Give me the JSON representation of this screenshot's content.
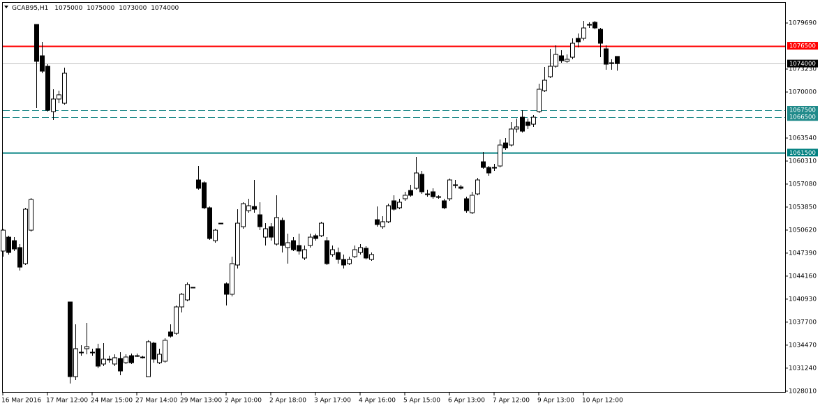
{
  "chart_data": {
    "type": "candlestick",
    "symbol": "GCAB95,H1",
    "header_values": [
      1075000,
      1075000,
      1073000,
      1074000
    ],
    "categories": [
      "16 Mar 2016",
      null,
      null,
      null,
      null,
      null,
      null,
      null,
      "17 Mar 12:00",
      null,
      null,
      null,
      null,
      null,
      null,
      null,
      "24 Mar 15:00",
      null,
      null,
      null,
      null,
      null,
      null,
      null,
      "27 Mar 14:00",
      null,
      null,
      null,
      null,
      null,
      null,
      null,
      "29 Mar 13:00",
      null,
      null,
      null,
      null,
      null,
      null,
      null,
      "2 Apr 10:00",
      null,
      null,
      null,
      null,
      null,
      null,
      null,
      "2 Apr 18:00",
      null,
      null,
      null,
      null,
      null,
      null,
      null,
      "3 Apr 17:00",
      null,
      null,
      null,
      null,
      null,
      null,
      null,
      "4 Apr 16:00",
      null,
      null,
      null,
      null,
      null,
      null,
      null,
      "5 Apr 15:00",
      null,
      null,
      null,
      null,
      null,
      null,
      null,
      "6 Apr 13:00",
      null,
      null,
      null,
      null,
      null,
      null,
      null,
      "7 Apr 12:00",
      null,
      null,
      null,
      null,
      null,
      null,
      null,
      "9 Apr 13:00",
      null,
      null,
      null,
      null,
      null,
      null,
      null,
      "10 Apr 12:00",
      null,
      null,
      null,
      null,
      null,
      null
    ],
    "open": [
      1047680,
      1049630,
      1049140,
      1048170,
      1045910,
      1050610,
      1079490,
      1075090,
      1073620,
      1067260,
      1069020,
      1068430,
      1040530,
      1030050,
      1033480,
      1033970,
      1033480,
      1033970,
      1031820,
      1032500,
      1031820,
      1032600,
      1032010,
      1032990,
      1032990,
      1032800,
      1030050,
      1034750,
      1032010,
      1032210,
      1036320,
      1036120,
      1039840,
      1040820,
      1042590,
      1057660,
      1057270,
      1053750,
      1049140,
      1051590,
      1043080,
      1041610,
      1045720,
      1051100,
      1053350,
      1053940,
      1052770,
      1049630,
      1051100,
      1048660,
      1051980,
      1048170,
      1049140,
      1048460,
      1046700,
      1048460,
      1049830,
      1049830,
      1049140,
      1047190,
      1047480,
      1046500,
      1045910,
      1046890,
      1047480,
      1048070,
      1046500,
      1052080,
      1051100,
      1051790,
      1054730,
      1053750,
      1055020,
      1056190,
      1056490,
      1058450,
      1055700,
      1056000,
      1055310,
      1054730,
      1055020,
      1056980,
      1056680,
      1055020,
      1053060,
      1055700,
      1060210,
      1059420,
      1059420,
      1059620,
      1062850,
      1062560,
      1064810,
      1066470,
      1065790,
      1065490,
      1067260,
      1070190,
      1072150,
      1073620,
      1075090,
      1074310,
      1074890,
      1077540,
      1077540,
      1079490,
      1079790,
      1078810,
      1076070,
      1074110,
      1075000
    ],
    "high": [
      1050810,
      1049830,
      1049630,
      1048660,
      1053750,
      1055120,
      1079490,
      1077050,
      1073910,
      1070390,
      1070190,
      1073420,
      1040530,
      1037400,
      1034460,
      1037590,
      1033970,
      1034660,
      1034750,
      1032990,
      1033190,
      1033480,
      1033190,
      1033290,
      1033290,
      1032990,
      1035150,
      1034950,
      1033970,
      1035440,
      1037400,
      1040040,
      1041800,
      1043270,
      1042590,
      1059620,
      1057470,
      1053940,
      1050810,
      1051590,
      1043270,
      1046890,
      1053550,
      1054530,
      1055020,
      1057660,
      1054530,
      1051590,
      1051590,
      1055510,
      1052380,
      1050120,
      1049630,
      1050120,
      1048460,
      1050120,
      1050120,
      1051790,
      1049630,
      1048460,
      1048170,
      1047190,
      1046890,
      1048460,
      1048660,
      1048360,
      1047480,
      1053940,
      1052570,
      1054330,
      1055510,
      1055020,
      1056000,
      1056980,
      1060890,
      1058930,
      1056290,
      1056490,
      1055510,
      1055020,
      1057860,
      1057660,
      1056980,
      1055310,
      1056000,
      1057960,
      1061580,
      1059620,
      1059910,
      1063340,
      1063540,
      1065790,
      1066280,
      1067450,
      1066280,
      1066770,
      1071170,
      1073520,
      1076070,
      1076560,
      1075870,
      1075280,
      1077540,
      1078220,
      1079980,
      1079790,
      1079980,
      1079000,
      1076560,
      1074600,
      1075000
    ],
    "low": [
      1046890,
      1047190,
      1047680,
      1044940,
      1045720,
      1050420,
      1067750,
      1072640,
      1067260,
      1066080,
      1068430,
      1068240,
      1029080,
      1029560,
      1032990,
      1033190,
      1032990,
      1031230,
      1031520,
      1032010,
      1031520,
      1030250,
      1031820,
      1031820,
      1032800,
      1032600,
      1030050,
      1032010,
      1031820,
      1032010,
      1035540,
      1035930,
      1039060,
      1040630,
      1042590,
      1056290,
      1053550,
      1049240,
      1048850,
      1051590,
      1040040,
      1041310,
      1045230,
      1050810,
      1053060,
      1053060,
      1050610,
      1048460,
      1049140,
      1048460,
      1047480,
      1045910,
      1047680,
      1047190,
      1046400,
      1048170,
      1049140,
      1049630,
      1045720,
      1046890,
      1045910,
      1045230,
      1045720,
      1046700,
      1047190,
      1046500,
      1046310,
      1051100,
      1050810,
      1051590,
      1053350,
      1053550,
      1054730,
      1055310,
      1056290,
      1055700,
      1055310,
      1055020,
      1055020,
      1053550,
      1054730,
      1056490,
      1056290,
      1053060,
      1052870,
      1055510,
      1059230,
      1058250,
      1058930,
      1059420,
      1061870,
      1062360,
      1064320,
      1064320,
      1064810,
      1065100,
      1067060,
      1070000,
      1071960,
      1073420,
      1074110,
      1074110,
      1074600,
      1076260,
      1077240,
      1079000,
      1078810,
      1074890,
      1073130,
      1073130,
      1073000
    ],
    "close": [
      1050610,
      1047480,
      1047970,
      1045420,
      1053550,
      1054920,
      1074310,
      1072930,
      1067450,
      1069020,
      1069610,
      1072640,
      1030050,
      1033970,
      1033480,
      1034260,
      1033480,
      1031520,
      1032500,
      1032500,
      1032700,
      1030840,
      1032800,
      1032010,
      1032990,
      1032800,
      1034950,
      1032500,
      1033190,
      1035150,
      1035730,
      1039840,
      1041610,
      1042980,
      1042590,
      1056490,
      1053750,
      1049440,
      1050610,
      1051590,
      1041610,
      1045910,
      1051590,
      1054330,
      1054040,
      1053550,
      1051100,
      1050810,
      1049630,
      1052380,
      1048460,
      1048850,
      1047870,
      1047680,
      1047870,
      1049630,
      1049440,
      1051590,
      1045910,
      1047870,
      1046500,
      1045720,
      1046500,
      1047870,
      1048170,
      1046700,
      1047190,
      1051400,
      1051790,
      1054040,
      1053550,
      1054530,
      1055510,
      1055510,
      1058640,
      1056000,
      1055700,
      1055310,
      1055310,
      1053750,
      1057660,
      1056980,
      1056490,
      1053350,
      1055510,
      1057660,
      1059420,
      1058640,
      1059420,
      1062560,
      1062170,
      1064810,
      1065100,
      1064510,
      1065300,
      1066470,
      1070390,
      1071660,
      1073620,
      1075280,
      1074400,
      1074600,
      1076850,
      1077050,
      1079000,
      1079490,
      1079000,
      1076850,
      1073910,
      1074110,
      1074000
    ],
    "up_color": "#ffffff",
    "down_color": "#000000",
    "ylim": [
      1027800,
      1082530
    ],
    "yticks": [
      1079690,
      1073230,
      1070000,
      1063540,
      1060310,
      1057080,
      1053850,
      1050620,
      1047390,
      1044160,
      1040930,
      1037700,
      1034470,
      1031240,
      1028010
    ],
    "levels": [
      {
        "value": 1076500,
        "color": "#ff0000",
        "style": "solid",
        "box": "#ff0000"
      },
      {
        "value": 1074000,
        "color": "#c0c0c0",
        "style": "solid",
        "box": "#000000"
      },
      {
        "value": 1067500,
        "color": "#1f8a8a",
        "style": "dashed",
        "box": "#1f8a8a"
      },
      {
        "value": 1066500,
        "color": "#1f8a8a",
        "style": "dashed",
        "box": "#1f8a8a"
      },
      {
        "value": 1061500,
        "color": "#008080",
        "style": "solid",
        "box": "#008080"
      }
    ]
  }
}
